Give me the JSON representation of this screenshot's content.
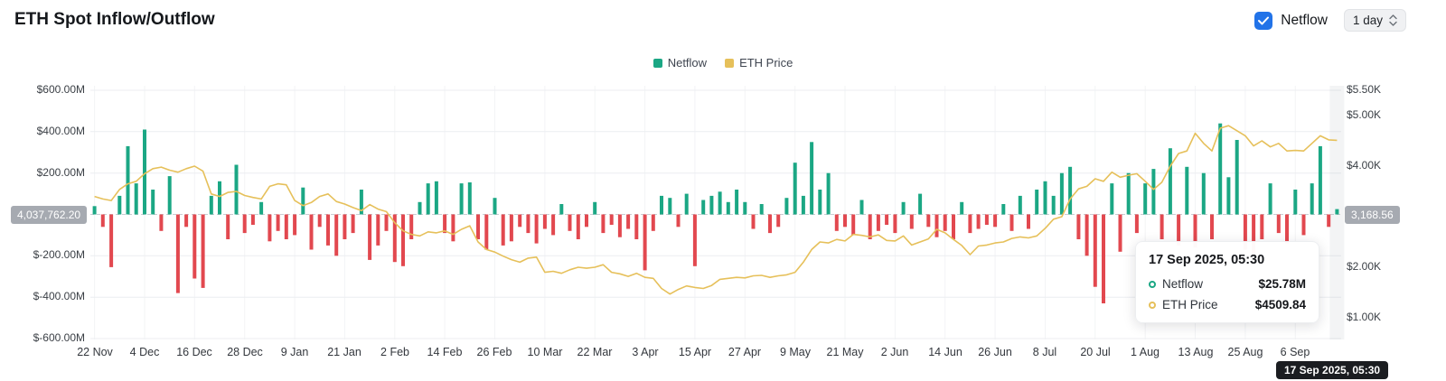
{
  "header": {
    "title": "ETH Spot Inflow/Outflow",
    "netflow_toggle_label": "Netflow",
    "netflow_toggle_checked": true,
    "interval_value": "1 day",
    "accent_blue": "#2273e8"
  },
  "legend": [
    {
      "label": "Netflow",
      "color": "#1ba784"
    },
    {
      "label": "ETH Price",
      "color": "#e6c05a"
    }
  ],
  "tooltip": {
    "title": "17 Sep 2025, 05:30",
    "rows": [
      {
        "label": "Netflow",
        "value": "$25.78M",
        "color": "#1ba784"
      },
      {
        "label": "ETH Price",
        "value": "$4509.84",
        "color": "#e6c05a"
      }
    ]
  },
  "crosshair": {
    "y_left_badge": "4,037,762.20",
    "y_right_badge": "3,168.56",
    "x_badge": "17 Sep 2025, 05:30"
  },
  "chart_data": {
    "type": "combo",
    "title": "ETH Spot Inflow/Outflow",
    "interval": "1 day",
    "date_range": "22 Nov 2024 - 17 Sep 2025",
    "points_per_tick": 6,
    "x_tick_labels": [
      "22 Nov",
      "4 Dec",
      "16 Dec",
      "28 Dec",
      "9 Jan",
      "21 Jan",
      "2 Feb",
      "14 Feb",
      "26 Feb",
      "10 Mar",
      "22 Mar",
      "3 Apr",
      "15 Apr",
      "27 Apr",
      "9 May",
      "21 May",
      "2 Jun",
      "14 Jun",
      "26 Jun",
      "8 Jul",
      "20 Jul",
      "1 Aug",
      "13 Aug",
      "25 Aug",
      "6 Sep"
    ],
    "y_left": {
      "unit": "USD (millions)",
      "min": -600,
      "max": 600,
      "ticks": [
        {
          "label": "$600.00M",
          "value": 600
        },
        {
          "label": "$400.00M",
          "value": 400
        },
        {
          "label": "$200.00M",
          "value": 200
        },
        {
          "label": "",
          "value": 0
        },
        {
          "label": "$-200.00M",
          "value": -200
        },
        {
          "label": "$-400.00M",
          "value": -400
        },
        {
          "label": "$-600.00M",
          "value": -600
        }
      ]
    },
    "y_right": {
      "unit": "USD",
      "min": 1000,
      "max": 5500,
      "ticks": [
        {
          "label": "$5.50K",
          "value": 5500
        },
        {
          "label": "$5.00K",
          "value": 5000
        },
        {
          "label": "$4.00K",
          "value": 4000
        },
        {
          "label": "$3.00K",
          "value": 3000
        },
        {
          "label": "$2.00K",
          "value": 2000
        },
        {
          "label": "$1.00K",
          "value": 1000
        }
      ]
    },
    "series": [
      {
        "name": "Netflow",
        "type": "bar",
        "unit": "USD millions",
        "color_positive": "#1ba784",
        "color_negative": "#e2484f",
        "values": [
          40,
          -60,
          -255,
          90,
          330,
          150,
          410,
          120,
          -80,
          185,
          -380,
          -60,
          -310,
          -355,
          90,
          160,
          -120,
          240,
          -90,
          -50,
          60,
          -130,
          -80,
          -120,
          -100,
          130,
          -170,
          -60,
          -150,
          -200,
          -120,
          -90,
          120,
          -220,
          -150,
          -80,
          -230,
          -250,
          -120,
          60,
          150,
          160,
          -90,
          -130,
          150,
          155,
          -120,
          -170,
          80,
          -150,
          -130,
          -60,
          -90,
          -140,
          -70,
          -100,
          50,
          -80,
          -120,
          -60,
          60,
          -90,
          -50,
          -110,
          -70,
          -120,
          -270,
          -80,
          90,
          80,
          -60,
          100,
          -250,
          70,
          90,
          110,
          60,
          120,
          60,
          -70,
          50,
          -90,
          -60,
          80,
          250,
          90,
          350,
          120,
          200,
          -80,
          -60,
          -100,
          70,
          -120,
          -80,
          -50,
          -90,
          60,
          -70,
          100,
          -60,
          -110,
          -80,
          -120,
          60,
          -90,
          -70,
          -50,
          -60,
          50,
          -80,
          90,
          -70,
          120,
          160,
          90,
          200,
          230,
          -120,
          -200,
          -350,
          -430,
          150,
          -180,
          200,
          -90,
          150,
          220,
          -120,
          320,
          -150,
          230,
          -160,
          200,
          -120,
          440,
          180,
          360,
          -170,
          -200,
          -120,
          150,
          -90,
          -140,
          120,
          -100,
          150,
          330,
          -60,
          25.78
        ]
      },
      {
        "name": "ETH Price",
        "type": "line",
        "unit": "USD",
        "color": "#e6c05a",
        "values": [
          3400,
          3350,
          3320,
          3540,
          3650,
          3700,
          3850,
          3950,
          3980,
          3920,
          3880,
          3950,
          4000,
          3900,
          3450,
          3400,
          3480,
          3500,
          3420,
          3380,
          3350,
          3600,
          3650,
          3630,
          3320,
          3220,
          3280,
          3400,
          3450,
          3300,
          3250,
          3180,
          3120,
          3240,
          3150,
          3100,
          2880,
          2720,
          2650,
          2620,
          2700,
          2680,
          2720,
          2650,
          2750,
          2820,
          2500,
          2350,
          2300,
          2220,
          2150,
          2100,
          2180,
          2200,
          1900,
          1920,
          1880,
          1950,
          2000,
          1980,
          2000,
          2050,
          1900,
          1870,
          1820,
          1880,
          1800,
          1780,
          1580,
          1470,
          1560,
          1630,
          1600,
          1580,
          1640,
          1760,
          1780,
          1800,
          1790,
          1830,
          1840,
          1800,
          1830,
          1850,
          1900,
          2100,
          2350,
          2500,
          2480,
          2550,
          2520,
          2650,
          2630,
          2600,
          2640,
          2530,
          2520,
          2620,
          2440,
          2500,
          2560,
          2750,
          2680,
          2550,
          2430,
          2250,
          2420,
          2440,
          2480,
          2500,
          2570,
          2600,
          2580,
          2620,
          2770,
          2950,
          3000,
          3350,
          3550,
          3600,
          3750,
          3700,
          3880,
          3780,
          3820,
          3850,
          3700,
          3540,
          3680,
          4000,
          4250,
          4300,
          4650,
          4450,
          4300,
          4750,
          4800,
          4700,
          4600,
          4400,
          4500,
          4380,
          4450,
          4300,
          4310,
          4300,
          4450,
          4600,
          4520,
          4509.84
        ]
      }
    ],
    "crosshair_point": {
      "date": "17 Sep 2025, 05:30",
      "netflow": "$25.78M",
      "eth_price": "$4509.84"
    }
  }
}
